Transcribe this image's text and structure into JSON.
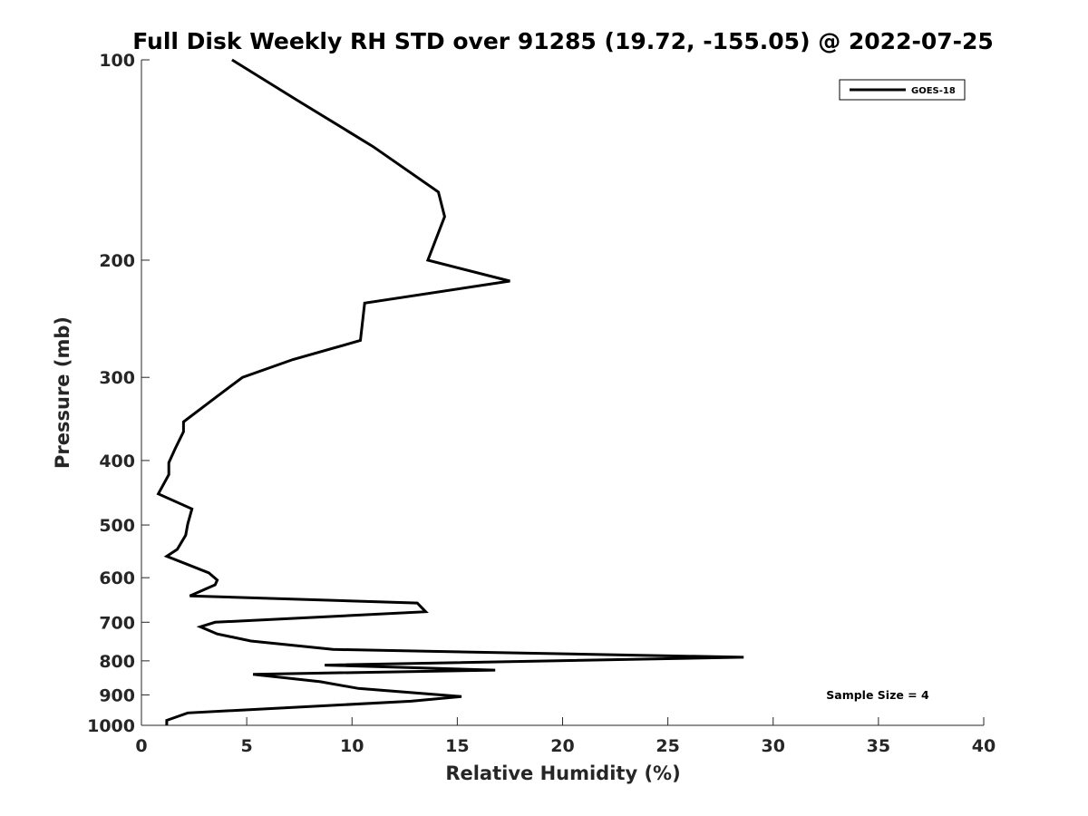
{
  "chart_data": {
    "type": "line",
    "title": "Full Disk Weekly RH STD over 91285 (19.72, -155.05) @ 2022-07-25",
    "xlabel": "Relative Humidity (%)",
    "ylabel": "Pressure (mb)",
    "xlim": [
      0,
      40
    ],
    "ylim": [
      100,
      1000
    ],
    "y_scale": "log",
    "y_reversed": true,
    "xticks": [
      "0",
      "5",
      "10",
      "15",
      "20",
      "25",
      "30",
      "35",
      "40"
    ],
    "yticks": [
      "100",
      "200",
      "300",
      "400",
      "500",
      "600",
      "700",
      "800",
      "900",
      "1000"
    ],
    "grid": false,
    "legend_position": "top-right",
    "series": [
      {
        "name": "GOES-18",
        "color": "#000000",
        "x": [
          4.3,
          7.4,
          11.0,
          14.1,
          14.4,
          13.6,
          17.5,
          10.6,
          10.4,
          7.2,
          4.8,
          3.5,
          2.0,
          2.0,
          1.6,
          1.3,
          1.3,
          0.8,
          2.4,
          2.2,
          2.1,
          1.7,
          1.2,
          3.2,
          3.6,
          3.5,
          2.3,
          13.1,
          13.5,
          3.5,
          2.8,
          3.6,
          5.2,
          9.1,
          28.6,
          8.7,
          16.8,
          5.3,
          8.5,
          10.3,
          15.2,
          12.8,
          2.2,
          1.2,
          1.2
        ],
        "y": [
          100,
          115,
          135,
          158,
          172,
          200,
          215,
          232,
          264,
          282,
          300,
          322,
          350,
          362,
          384,
          403,
          420,
          449,
          473,
          498,
          518,
          544,
          557,
          590,
          605,
          615,
          639,
          655,
          675,
          700,
          711,
          729,
          747,
          769,
          790,
          812,
          826,
          838,
          860,
          880,
          905,
          920,
          958,
          983,
          1000
        ]
      }
    ],
    "annotation": "Sample Size = 4"
  }
}
